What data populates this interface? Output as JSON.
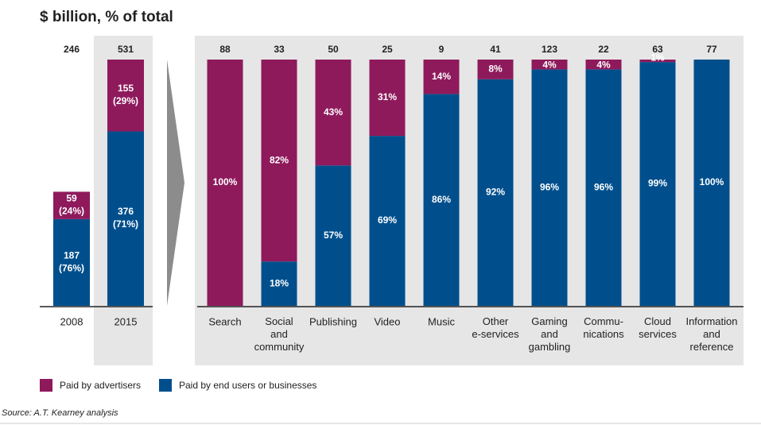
{
  "title": "$ billion, % of total",
  "source": "Source: A.T. Kearney analysis",
  "chart_data": [
    {
      "type": "stacked-bar",
      "categories": [
        "2008",
        "2015"
      ],
      "totals": [
        246,
        531
      ],
      "series": [
        {
          "name": "Paid by end users or businesses",
          "color": "#004f8c",
          "values": [
            187,
            376
          ],
          "value_labels": [
            "187\n(76%)",
            "376\n(71%)"
          ]
        },
        {
          "name": "Paid by advertisers",
          "color": "#8e1a5c",
          "values": [
            59,
            155
          ],
          "value_labels": [
            "59\n(24%)",
            "155\n(29%)"
          ]
        }
      ]
    },
    {
      "type": "stacked-bar-percent",
      "categories": [
        "Search",
        "Social\nand\ncommunity",
        "Publishing",
        "Video",
        "Music",
        "Other\ne-services",
        "Gaming\nand\ngambling",
        "Commu-\nnications",
        "Cloud\nservices",
        "Information\nand\nreference"
      ],
      "totals": [
        88,
        33,
        50,
        25,
        9,
        41,
        123,
        22,
        63,
        77
      ],
      "series": [
        {
          "name": "Paid by end users or businesses",
          "color": "#004f8c",
          "values": [
            0,
            18,
            57,
            69,
            86,
            92,
            96,
            96,
            99,
            100
          ],
          "value_labels": [
            null,
            "18%",
            "57%",
            "69%",
            "86%",
            "92%",
            "96%",
            "96%",
            "99%",
            "100%"
          ]
        },
        {
          "name": "Paid by advertisers",
          "color": "#8e1a5c",
          "values": [
            100,
            82,
            43,
            31,
            14,
            8,
            4,
            4,
            1,
            0
          ],
          "value_labels": [
            "100%",
            "82%",
            "43%",
            "31%",
            "14%",
            "8%",
            "4%",
            "4%",
            "1%",
            null
          ]
        }
      ]
    }
  ]
}
